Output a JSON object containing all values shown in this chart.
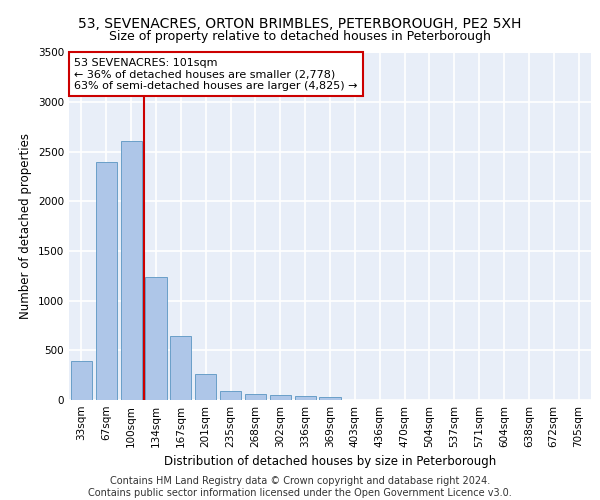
{
  "title1": "53, SEVENACRES, ORTON BRIMBLES, PETERBOROUGH, PE2 5XH",
  "title2": "Size of property relative to detached houses in Peterborough",
  "xlabel": "Distribution of detached houses by size in Peterborough",
  "ylabel": "Number of detached properties",
  "categories": [
    "33sqm",
    "67sqm",
    "100sqm",
    "134sqm",
    "167sqm",
    "201sqm",
    "235sqm",
    "268sqm",
    "302sqm",
    "336sqm",
    "369sqm",
    "403sqm",
    "436sqm",
    "470sqm",
    "504sqm",
    "537sqm",
    "571sqm",
    "604sqm",
    "638sqm",
    "672sqm",
    "705sqm"
  ],
  "values": [
    390,
    2400,
    2610,
    1240,
    640,
    260,
    90,
    60,
    55,
    40,
    30,
    0,
    0,
    0,
    0,
    0,
    0,
    0,
    0,
    0,
    0
  ],
  "bar_color": "#aec6e8",
  "bar_edge_color": "#6a9fc8",
  "vline_x_index": 2,
  "vline_color": "#cc0000",
  "annotation_text": "53 SEVENACRES: 101sqm\n← 36% of detached houses are smaller (2,778)\n63% of semi-detached houses are larger (4,825) →",
  "annotation_box_color": "#ffffff",
  "annotation_box_edge": "#cc0000",
  "ylim": [
    0,
    3500
  ],
  "yticks": [
    0,
    500,
    1000,
    1500,
    2000,
    2500,
    3000,
    3500
  ],
  "footer_text": "Contains HM Land Registry data © Crown copyright and database right 2024.\nContains public sector information licensed under the Open Government Licence v3.0.",
  "background_color": "#e8eef8",
  "grid_color": "#ffffff",
  "title1_fontsize": 10,
  "title2_fontsize": 9,
  "xlabel_fontsize": 8.5,
  "ylabel_fontsize": 8.5,
  "tick_fontsize": 7.5,
  "annotation_fontsize": 8,
  "footer_fontsize": 7
}
